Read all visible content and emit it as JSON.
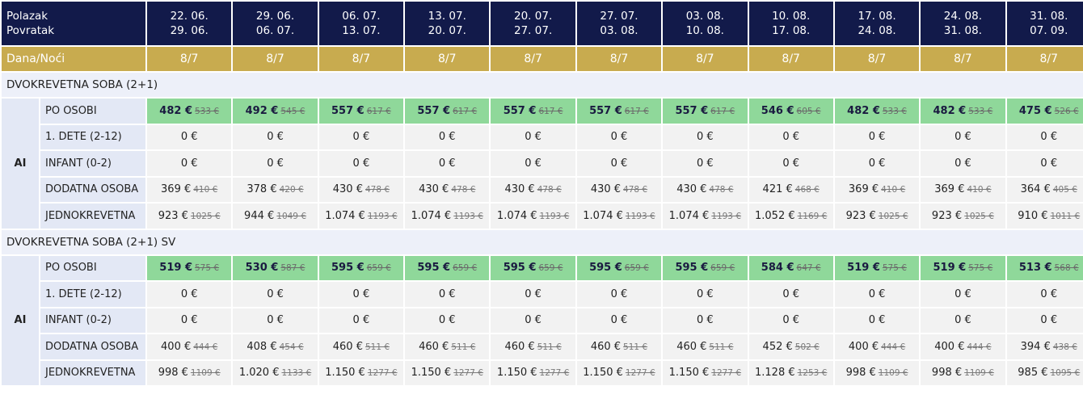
{
  "header": {
    "polazak_label": "Polazak",
    "povratak_label": "Povratak",
    "dana_noci_label": "Dana/Noći",
    "terms": [
      {
        "from": "22. 06.",
        "to": "29. 06.",
        "nights": "8/7"
      },
      {
        "from": "29. 06.",
        "to": "06. 07.",
        "nights": "8/7"
      },
      {
        "from": "06. 07.",
        "to": "13. 07.",
        "nights": "8/7"
      },
      {
        "from": "13. 07.",
        "to": "20. 07.",
        "nights": "8/7"
      },
      {
        "from": "20. 07.",
        "to": "27. 07.",
        "nights": "8/7"
      },
      {
        "from": "27. 07.",
        "to": "03. 08.",
        "nights": "8/7"
      },
      {
        "from": "03. 08.",
        "to": "10. 08.",
        "nights": "8/7"
      },
      {
        "from": "10. 08.",
        "to": "17. 08.",
        "nights": "8/7"
      },
      {
        "from": "17. 08.",
        "to": "24. 08.",
        "nights": "8/7"
      },
      {
        "from": "24. 08.",
        "to": "31. 08.",
        "nights": "8/7"
      },
      {
        "from": "31. 08.",
        "to": "07. 09.",
        "nights": "8/7"
      }
    ]
  },
  "rooms": [
    {
      "name": "DVOKREVETNA SOBA (2+1)",
      "board": "AI",
      "rows": [
        {
          "label": "PO OSOBI",
          "highlight": true,
          "cells": [
            {
              "price": "482 €",
              "old": "533 €"
            },
            {
              "price": "492 €",
              "old": "545 €"
            },
            {
              "price": "557 €",
              "old": "617 €"
            },
            {
              "price": "557 €",
              "old": "617 €"
            },
            {
              "price": "557 €",
              "old": "617 €"
            },
            {
              "price": "557 €",
              "old": "617 €"
            },
            {
              "price": "557 €",
              "old": "617 €"
            },
            {
              "price": "546 €",
              "old": "605 €"
            },
            {
              "price": "482 €",
              "old": "533 €"
            },
            {
              "price": "482 €",
              "old": "533 €"
            },
            {
              "price": "475 €",
              "old": "526 €"
            }
          ]
        },
        {
          "label": "1. DETE (2-12)",
          "highlight": false,
          "cells": [
            {
              "price": "0 €"
            },
            {
              "price": "0 €"
            },
            {
              "price": "0 €"
            },
            {
              "price": "0 €"
            },
            {
              "price": "0 €"
            },
            {
              "price": "0 €"
            },
            {
              "price": "0 €"
            },
            {
              "price": "0 €"
            },
            {
              "price": "0 €"
            },
            {
              "price": "0 €"
            },
            {
              "price": "0 €"
            }
          ]
        },
        {
          "label": "INFANT (0-2)",
          "highlight": false,
          "cells": [
            {
              "price": "0 €"
            },
            {
              "price": "0 €"
            },
            {
              "price": "0 €"
            },
            {
              "price": "0 €"
            },
            {
              "price": "0 €"
            },
            {
              "price": "0 €"
            },
            {
              "price": "0 €"
            },
            {
              "price": "0 €"
            },
            {
              "price": "0 €"
            },
            {
              "price": "0 €"
            },
            {
              "price": "0 €"
            }
          ]
        },
        {
          "label": "DODATNA OSOBA",
          "highlight": false,
          "cells": [
            {
              "price": "369 €",
              "old": "410 €"
            },
            {
              "price": "378 €",
              "old": "420 €"
            },
            {
              "price": "430 €",
              "old": "478 €"
            },
            {
              "price": "430 €",
              "old": "478 €"
            },
            {
              "price": "430 €",
              "old": "478 €"
            },
            {
              "price": "430 €",
              "old": "478 €"
            },
            {
              "price": "430 €",
              "old": "478 €"
            },
            {
              "price": "421 €",
              "old": "468 €"
            },
            {
              "price": "369 €",
              "old": "410 €"
            },
            {
              "price": "369 €",
              "old": "410 €"
            },
            {
              "price": "364 €",
              "old": "405 €"
            }
          ]
        },
        {
          "label": "JEDNOKREVETNA",
          "highlight": false,
          "cells": [
            {
              "price": "923 €",
              "old": "1025 €"
            },
            {
              "price": "944 €",
              "old": "1049 €"
            },
            {
              "price": "1.074 €",
              "old": "1193 €"
            },
            {
              "price": "1.074 €",
              "old": "1193 €"
            },
            {
              "price": "1.074 €",
              "old": "1193 €"
            },
            {
              "price": "1.074 €",
              "old": "1193 €"
            },
            {
              "price": "1.074 €",
              "old": "1193 €"
            },
            {
              "price": "1.052 €",
              "old": "1169 €"
            },
            {
              "price": "923 €",
              "old": "1025 €"
            },
            {
              "price": "923 €",
              "old": "1025 €"
            },
            {
              "price": "910 €",
              "old": "1011 €"
            }
          ]
        }
      ]
    },
    {
      "name": "DVOKREVETNA SOBA (2+1) SV",
      "board": "AI",
      "rows": [
        {
          "label": "PO OSOBI",
          "highlight": true,
          "cells": [
            {
              "price": "519 €",
              "old": "575 €"
            },
            {
              "price": "530 €",
              "old": "587 €"
            },
            {
              "price": "595 €",
              "old": "659 €"
            },
            {
              "price": "595 €",
              "old": "659 €"
            },
            {
              "price": "595 €",
              "old": "659 €"
            },
            {
              "price": "595 €",
              "old": "659 €"
            },
            {
              "price": "595 €",
              "old": "659 €"
            },
            {
              "price": "584 €",
              "old": "647 €"
            },
            {
              "price": "519 €",
              "old": "575 €"
            },
            {
              "price": "519 €",
              "old": "575 €"
            },
            {
              "price": "513 €",
              "old": "568 €"
            }
          ]
        },
        {
          "label": "1. DETE (2-12)",
          "highlight": false,
          "cells": [
            {
              "price": "0 €"
            },
            {
              "price": "0 €"
            },
            {
              "price": "0 €"
            },
            {
              "price": "0 €"
            },
            {
              "price": "0 €"
            },
            {
              "price": "0 €"
            },
            {
              "price": "0 €"
            },
            {
              "price": "0 €"
            },
            {
              "price": "0 €"
            },
            {
              "price": "0 €"
            },
            {
              "price": "0 €"
            }
          ]
        },
        {
          "label": "INFANT (0-2)",
          "highlight": false,
          "cells": [
            {
              "price": "0 €"
            },
            {
              "price": "0 €"
            },
            {
              "price": "0 €"
            },
            {
              "price": "0 €"
            },
            {
              "price": "0 €"
            },
            {
              "price": "0 €"
            },
            {
              "price": "0 €"
            },
            {
              "price": "0 €"
            },
            {
              "price": "0 €"
            },
            {
              "price": "0 €"
            },
            {
              "price": "0 €"
            }
          ]
        },
        {
          "label": "DODATNA OSOBA",
          "highlight": false,
          "cells": [
            {
              "price": "400 €",
              "old": "444 €"
            },
            {
              "price": "408 €",
              "old": "454 €"
            },
            {
              "price": "460 €",
              "old": "511 €"
            },
            {
              "price": "460 €",
              "old": "511 €"
            },
            {
              "price": "460 €",
              "old": "511 €"
            },
            {
              "price": "460 €",
              "old": "511 €"
            },
            {
              "price": "460 €",
              "old": "511 €"
            },
            {
              "price": "452 €",
              "old": "502 €"
            },
            {
              "price": "400 €",
              "old": "444 €"
            },
            {
              "price": "400 €",
              "old": "444 €"
            },
            {
              "price": "394 €",
              "old": "438 €"
            }
          ]
        },
        {
          "label": "JEDNOKREVETNA",
          "highlight": false,
          "cells": [
            {
              "price": "998 €",
              "old": "1109 €"
            },
            {
              "price": "1.020 €",
              "old": "1133 €"
            },
            {
              "price": "1.150 €",
              "old": "1277 €"
            },
            {
              "price": "1.150 €",
              "old": "1277 €"
            },
            {
              "price": "1.150 €",
              "old": "1277 €"
            },
            {
              "price": "1.150 €",
              "old": "1277 €"
            },
            {
              "price": "1.150 €",
              "old": "1277 €"
            },
            {
              "price": "1.128 €",
              "old": "1253 €"
            },
            {
              "price": "998 €",
              "old": "1109 €"
            },
            {
              "price": "998 €",
              "old": "1109 €"
            },
            {
              "price": "985 €",
              "old": "1095 €"
            }
          ]
        }
      ]
    }
  ]
}
